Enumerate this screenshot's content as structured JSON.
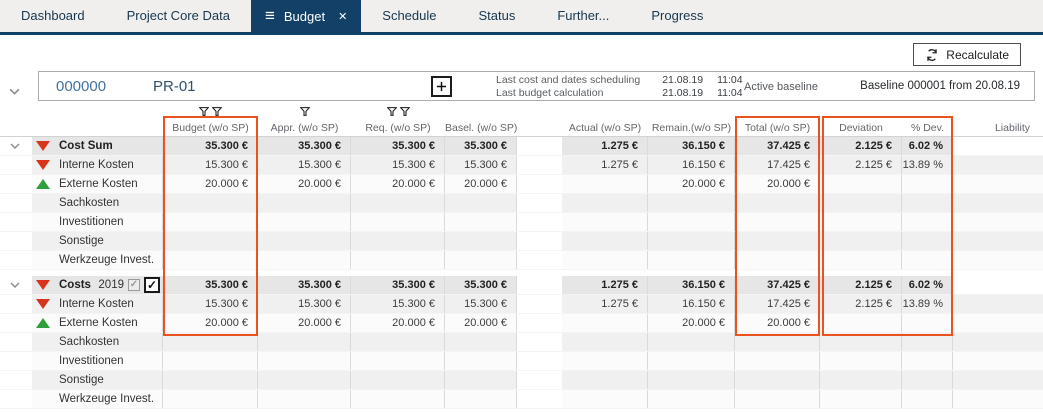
{
  "tabs": [
    {
      "label": "Dashboard",
      "active": false
    },
    {
      "label": "Project Core Data",
      "active": false
    },
    {
      "label": "Budget",
      "active": true
    },
    {
      "label": "Schedule",
      "active": false
    },
    {
      "label": "Status",
      "active": false
    },
    {
      "label": "Further...",
      "active": false
    },
    {
      "label": "Progress",
      "active": false
    }
  ],
  "toolbar": {
    "recalculate": "Recalculate"
  },
  "project": {
    "number": "000000",
    "code": "PR-01",
    "info": [
      {
        "label": "Last cost and dates scheduling",
        "date": "21.08.19",
        "time": "11:04"
      },
      {
        "label": "Last budget calculation",
        "date": "21.08.19",
        "time": "11:04"
      }
    ],
    "baseline_label": "Active baseline",
    "baseline_value": "Baseline 000001 from 20.08.19"
  },
  "colors": {
    "accent_navy": "#134066",
    "highlight_orange": "#e8531f",
    "trend_down_red": "#d8341c",
    "trend_up_green": "#2f9e3b"
  },
  "table": {
    "columns": [
      {
        "key": "budget",
        "label": "Budget (w/o SP)",
        "filters": 2
      },
      {
        "key": "appr",
        "label": "Appr. (w/o SP)",
        "filters": 1
      },
      {
        "key": "req",
        "label": "Req. (w/o SP)",
        "filters": 2
      },
      {
        "key": "basel",
        "label": "Basel. (w/o SP)",
        "filters": 0
      },
      {
        "key": "actual",
        "label": "Actual (w/o SP)",
        "filters": 0
      },
      {
        "key": "remain",
        "label": "Remain.(w/o SP)",
        "filters": 0
      },
      {
        "key": "total",
        "label": "Total (w/o SP)",
        "filters": 0
      },
      {
        "key": "deviation",
        "label": "Deviation",
        "filters": 0
      },
      {
        "key": "pdev",
        "label": "% Dev.",
        "filters": 0
      },
      {
        "key": "liability",
        "label": "Liability",
        "filters": 0
      }
    ],
    "groups": [
      {
        "label": "Cost Sum",
        "trend": "down",
        "cells": [
          "35.300 €",
          "35.300 €",
          "35.300 €",
          "35.300 €",
          "1.275 €",
          "36.150 €",
          "37.425 €",
          "2.125 €",
          "6.02 %",
          ""
        ],
        "rows": [
          {
            "label": "Interne Kosten",
            "trend": "down",
            "cells": [
              "15.300 €",
              "15.300 €",
              "15.300 €",
              "15.300 €",
              "1.275 €",
              "16.150 €",
              "17.425 €",
              "2.125 €",
              "13.89 %",
              ""
            ]
          },
          {
            "label": "Externe Kosten",
            "trend": "up",
            "cells": [
              "20.000 €",
              "20.000 €",
              "20.000 €",
              "20.000 €",
              "",
              "20.000 €",
              "20.000 €",
              "",
              "",
              ""
            ]
          },
          {
            "label": "Sachkosten",
            "trend": "",
            "cells": [
              "",
              "",
              "",
              "",
              "",
              "",
              "",
              "",
              "",
              ""
            ]
          },
          {
            "label": "Investitionen",
            "trend": "",
            "cells": [
              "",
              "",
              "",
              "",
              "",
              "",
              "",
              "",
              "",
              ""
            ]
          },
          {
            "label": "Sonstige",
            "trend": "",
            "cells": [
              "",
              "",
              "",
              "",
              "",
              "",
              "",
              "",
              "",
              ""
            ]
          },
          {
            "label": "Werkzeuge Invest.",
            "trend": "",
            "cells": [
              "",
              "",
              "",
              "",
              "",
              "",
              "",
              "",
              "",
              ""
            ]
          }
        ]
      },
      {
        "label": "Costs",
        "year": "2019",
        "checkboxes": [
          {
            "checked": true,
            "disabled": true
          },
          {
            "checked": true,
            "disabled": false
          }
        ],
        "trend": "down",
        "cells": [
          "35.300 €",
          "35.300 €",
          "35.300 €",
          "35.300 €",
          "1.275 €",
          "36.150 €",
          "37.425 €",
          "2.125 €",
          "6.02 %",
          ""
        ],
        "rows": [
          {
            "label": "Interne Kosten",
            "trend": "down",
            "cells": [
              "15.300 €",
              "15.300 €",
              "15.300 €",
              "15.300 €",
              "1.275 €",
              "16.150 €",
              "17.425 €",
              "2.125 €",
              "13.89 %",
              ""
            ]
          },
          {
            "label": "Externe Kosten",
            "trend": "up",
            "cells": [
              "20.000 €",
              "20.000 €",
              "20.000 €",
              "20.000 €",
              "",
              "20.000 €",
              "20.000 €",
              "",
              "",
              ""
            ]
          },
          {
            "label": "Sachkosten",
            "trend": "",
            "cells": [
              "",
              "",
              "",
              "",
              "",
              "",
              "",
              "",
              "",
              ""
            ]
          },
          {
            "label": "Investitionen",
            "trend": "",
            "cells": [
              "",
              "",
              "",
              "",
              "",
              "",
              "",
              "",
              "",
              ""
            ]
          },
          {
            "label": "Sonstige",
            "trend": "",
            "cells": [
              "",
              "",
              "",
              "",
              "",
              "",
              "",
              "",
              "",
              ""
            ]
          },
          {
            "label": "Werkzeuge Invest.",
            "trend": "",
            "cells": [
              "",
              "",
              "",
              "",
              "",
              "",
              "",
              "",
              "",
              ""
            ]
          }
        ]
      }
    ]
  }
}
